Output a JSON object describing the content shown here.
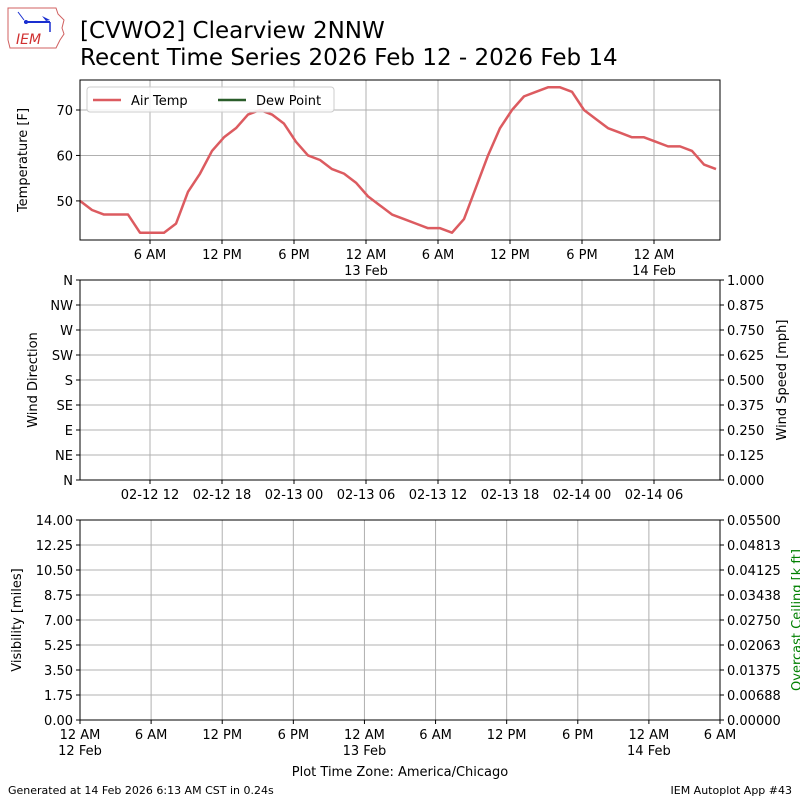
{
  "header": {
    "title_line1": "[CVWO2] Clearview 2NNW",
    "title_line2": "Recent Time Series 2026 Feb 12 - 2026 Feb 14",
    "logo_text": "IEM"
  },
  "footer": {
    "generated": "Generated at 14 Feb 2026 6:13 AM CST in 0.24s",
    "app": "IEM Autoplot App #43"
  },
  "chart_data": [
    {
      "type": "line",
      "ylabel": "Temperature [F]",
      "ylim": [
        41.4,
        76.6
      ],
      "yticks": [
        50,
        60,
        70
      ],
      "grid": true,
      "legend": {
        "placement": "top-left",
        "entries": [
          {
            "name": "Air Temp",
            "color": "#dc5b60"
          },
          {
            "name": "Dew Point",
            "color": "#2a5d2a"
          }
        ]
      },
      "xticks": [
        {
          "t": "2026-02-12T06:00",
          "label": "6 AM",
          "sub": ""
        },
        {
          "t": "2026-02-12T12:00",
          "label": "12 PM",
          "sub": ""
        },
        {
          "t": "2026-02-12T18:00",
          "label": "6 PM",
          "sub": ""
        },
        {
          "t": "2026-02-13T00:00",
          "label": "12 AM",
          "sub": "13 Feb"
        },
        {
          "t": "2026-02-13T06:00",
          "label": "6 AM",
          "sub": ""
        },
        {
          "t": "2026-02-13T12:00",
          "label": "12 PM",
          "sub": ""
        },
        {
          "t": "2026-02-13T18:00",
          "label": "6 PM",
          "sub": ""
        },
        {
          "t": "2026-02-14T00:00",
          "label": "12 AM",
          "sub": "14 Feb"
        }
      ],
      "xlim": [
        "2026-02-12T00:10",
        "2026-02-14T05:30"
      ],
      "series": [
        {
          "name": "Air Temp",
          "color": "#dc5b60",
          "start": "2026-02-12T00:10",
          "interval_hours": 1,
          "values": [
            50,
            48,
            47,
            47,
            47,
            43,
            43,
            43,
            45,
            52,
            56,
            61,
            64,
            66,
            69,
            70,
            69,
            67,
            63,
            60,
            59,
            57,
            56,
            54,
            51,
            49,
            47,
            46,
            45,
            44,
            44,
            43,
            46,
            53,
            60,
            66,
            70,
            73,
            74,
            75,
            75,
            74,
            70,
            68,
            66,
            65,
            64,
            64,
            63,
            62,
            62,
            61,
            58,
            57
          ]
        },
        {
          "name": "Dew Point",
          "color": "#2a5d2a",
          "values": []
        }
      ]
    },
    {
      "type": "line",
      "ylabel": "Wind Direction",
      "y2label": "Wind Speed [mph]",
      "yticklabels": [
        "N",
        "NE",
        "E",
        "SE",
        "S",
        "SW",
        "W",
        "NW",
        "N"
      ],
      "y2ticklabels": [
        "0.000",
        "0.125",
        "0.250",
        "0.375",
        "0.500",
        "0.625",
        "0.750",
        "0.875",
        "1.000"
      ],
      "y2lim": [
        0,
        1
      ],
      "grid": true,
      "xticklabels": [
        "02-12 12",
        "02-12 18",
        "02-13 00",
        "02-13 06",
        "02-13 12",
        "02-13 18",
        "02-14 00",
        "02-14 06"
      ],
      "series": []
    },
    {
      "type": "line",
      "ylabel": "Visibility [miles]",
      "y2label": "Overcast Ceiling [k ft]",
      "y2label_color": "#008000",
      "ylim": [
        0,
        14
      ],
      "yticklabels": [
        "0.00",
        "1.75",
        "3.50",
        "5.25",
        "7.00",
        "8.75",
        "10.50",
        "12.25",
        "14.00"
      ],
      "y2lim": [
        0,
        0.055
      ],
      "y2ticklabels": [
        "0.00000",
        "0.00688",
        "0.01375",
        "0.02063",
        "0.02750",
        "0.03438",
        "0.04125",
        "0.04813",
        "0.05500"
      ],
      "grid": true,
      "xlim": [
        "2026-02-12T00:00",
        "2026-02-14T06:00"
      ],
      "xticks": [
        {
          "label": "12 AM",
          "sub": "12 Feb"
        },
        {
          "label": "6 AM",
          "sub": ""
        },
        {
          "label": "12 PM",
          "sub": ""
        },
        {
          "label": "6 PM",
          "sub": ""
        },
        {
          "label": "12 AM",
          "sub": "13 Feb"
        },
        {
          "label": "6 AM",
          "sub": ""
        },
        {
          "label": "12 PM",
          "sub": ""
        },
        {
          "label": "6 PM",
          "sub": ""
        },
        {
          "label": "12 AM",
          "sub": "14 Feb"
        },
        {
          "label": "6 AM",
          "sub": ""
        }
      ],
      "xlabel": "Plot Time Zone: America/Chicago",
      "series": []
    }
  ]
}
